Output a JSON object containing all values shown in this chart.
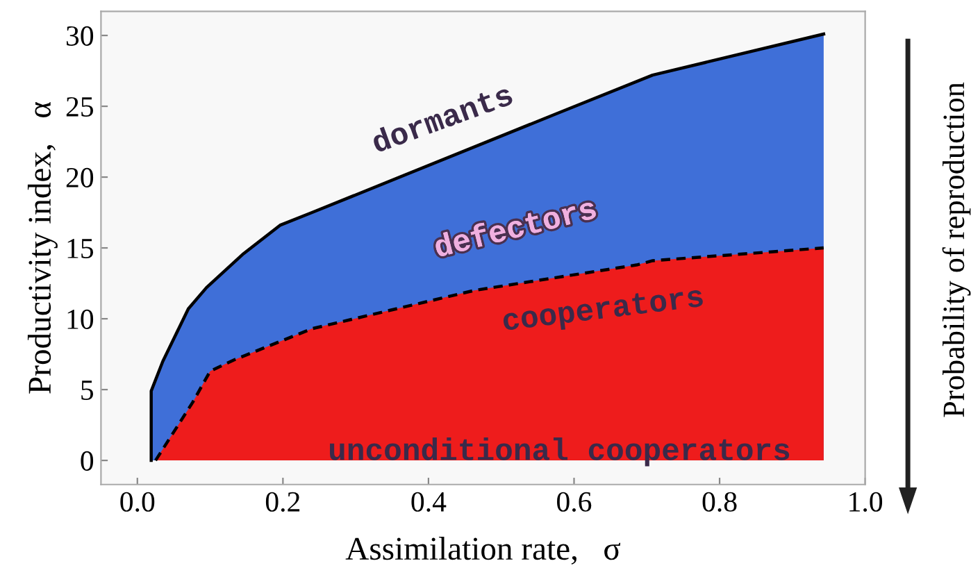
{
  "chart_data": {
    "type": "area",
    "xlabel": "Assimilation rate,   σ",
    "ylabel": "Productivity index,   α",
    "y2label": "Probability of reproduction",
    "series": [
      {
        "color": "#3f6fd8",
        "line_style": "solid",
        "x": [
          0.019,
          0.019,
          0.035,
          0.07,
          0.095,
          0.146,
          0.196,
          0.24,
          0.577,
          0.708,
          0.943
        ],
        "values": [
          0,
          4.9,
          7,
          10.7,
          12.2,
          14.6,
          16.6,
          17.5,
          24.5,
          27.2,
          30.1
        ]
      },
      {
        "color": "#ee1c1c",
        "line_style": "dashed",
        "x": [
          0.025,
          0.076,
          0.1,
          0.133,
          0.24,
          0.463,
          0.686,
          0.708,
          0.943
        ],
        "values": [
          0,
          4.1,
          6.3,
          7.1,
          9.3,
          12,
          13.8,
          14.1,
          15
        ]
      }
    ],
    "annotations": [
      "dormants",
      "defectors",
      "cooperators",
      "unconditional cooperators"
    ],
    "xlim": [
      -0.05,
      1.0
    ],
    "ylim": [
      -1.7,
      31.7
    ],
    "xticks": [
      {
        "value": 0,
        "label": "0.0"
      },
      0.2,
      0.4,
      0.6,
      0.8,
      {
        "value": 1,
        "label": "1.0"
      }
    ],
    "yticks": [
      0,
      5,
      10,
      15,
      20,
      25,
      30
    ],
    "grid": false
  }
}
